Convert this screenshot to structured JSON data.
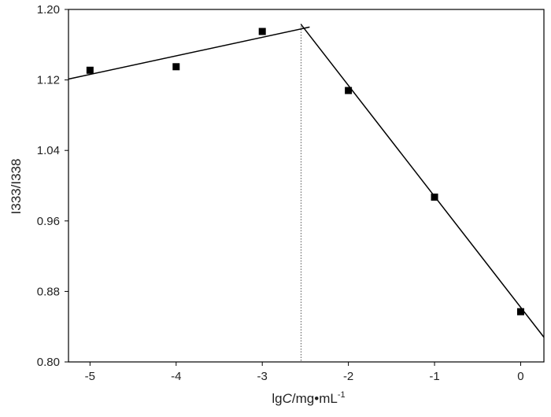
{
  "chart_data": {
    "type": "scatter",
    "title": "",
    "xlabel": {
      "prefix": "lg",
      "italic": "C",
      "unit": "/mg•mL",
      "superscript": "-1"
    },
    "ylabel": "I333/I338",
    "xlim": [
      -5.25,
      0.27
    ],
    "ylim": [
      0.8,
      1.2
    ],
    "x_ticks": [
      -5,
      -4,
      -3,
      -2,
      -1,
      0
    ],
    "x_tick_labels": [
      "-5",
      "-4",
      "-3",
      "-2",
      "-1",
      "0"
    ],
    "y_ticks": [
      0.8,
      0.88,
      0.96,
      1.04,
      1.12,
      1.2
    ],
    "y_tick_labels": [
      "0.80",
      "0.88",
      "0.96",
      "1.04",
      "1.12",
      "1.20"
    ],
    "grid": false,
    "legend": "none",
    "series": [
      {
        "marker": "square",
        "color": "#000000",
        "x": [
          -5,
          -4,
          -3,
          -2,
          -1,
          0
        ],
        "y": [
          1.131,
          1.135,
          1.175,
          1.108,
          0.987,
          0.857
        ]
      }
    ],
    "fit_lines": [
      {
        "x": [
          -5.25,
          -2.45
        ],
        "y": [
          1.121,
          1.18
        ]
      },
      {
        "x": [
          -2.55,
          0.27
        ],
        "y": [
          1.183,
          0.828
        ]
      }
    ],
    "reference_lines": [
      {
        "orientation": "vertical",
        "x": -2.55,
        "style": "dotted"
      }
    ]
  }
}
